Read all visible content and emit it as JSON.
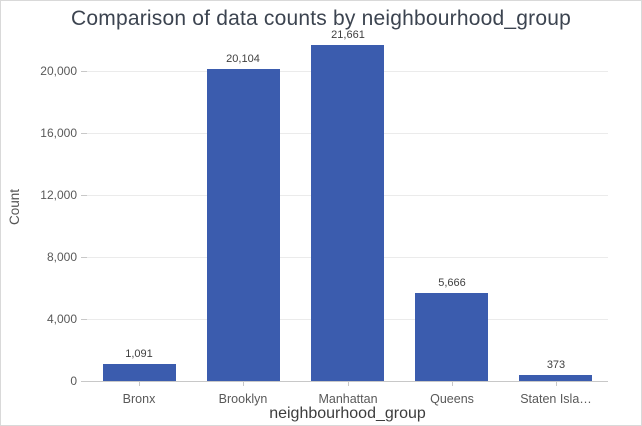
{
  "chart_data": {
    "type": "bar",
    "title": "Comparison of data counts by neighbourhood_group",
    "xlabel": "neighbourhood_group",
    "ylabel": "Count",
    "categories": [
      "Bronx",
      "Brooklyn",
      "Manhattan",
      "Queens",
      "Staten Isla…"
    ],
    "values": [
      1091,
      20104,
      21661,
      5666,
      373
    ],
    "value_labels": [
      "1,091",
      "20,104",
      "21,661",
      "5,666",
      "373"
    ],
    "yticks": [
      0,
      4000,
      8000,
      12000,
      16000,
      20000
    ],
    "ytick_labels": [
      "0",
      "4,000",
      "8,000",
      "12,000",
      "16,000",
      "20,000"
    ],
    "ylim": [
      0,
      22000
    ],
    "grid": true,
    "legend": false
  },
  "colors": {
    "bar": "#3b5cae",
    "title_text": "#3c4450",
    "x_axis_title_text": "#3d3d3d",
    "y_axis_title_text": "#555555",
    "tick_label_text": "#595959",
    "value_label_text": "#3f3f3f",
    "gridline": "#ebebeb",
    "axis_line": "#c8c8c8",
    "background": "#ffffff",
    "border": "#d9d9d9"
  }
}
